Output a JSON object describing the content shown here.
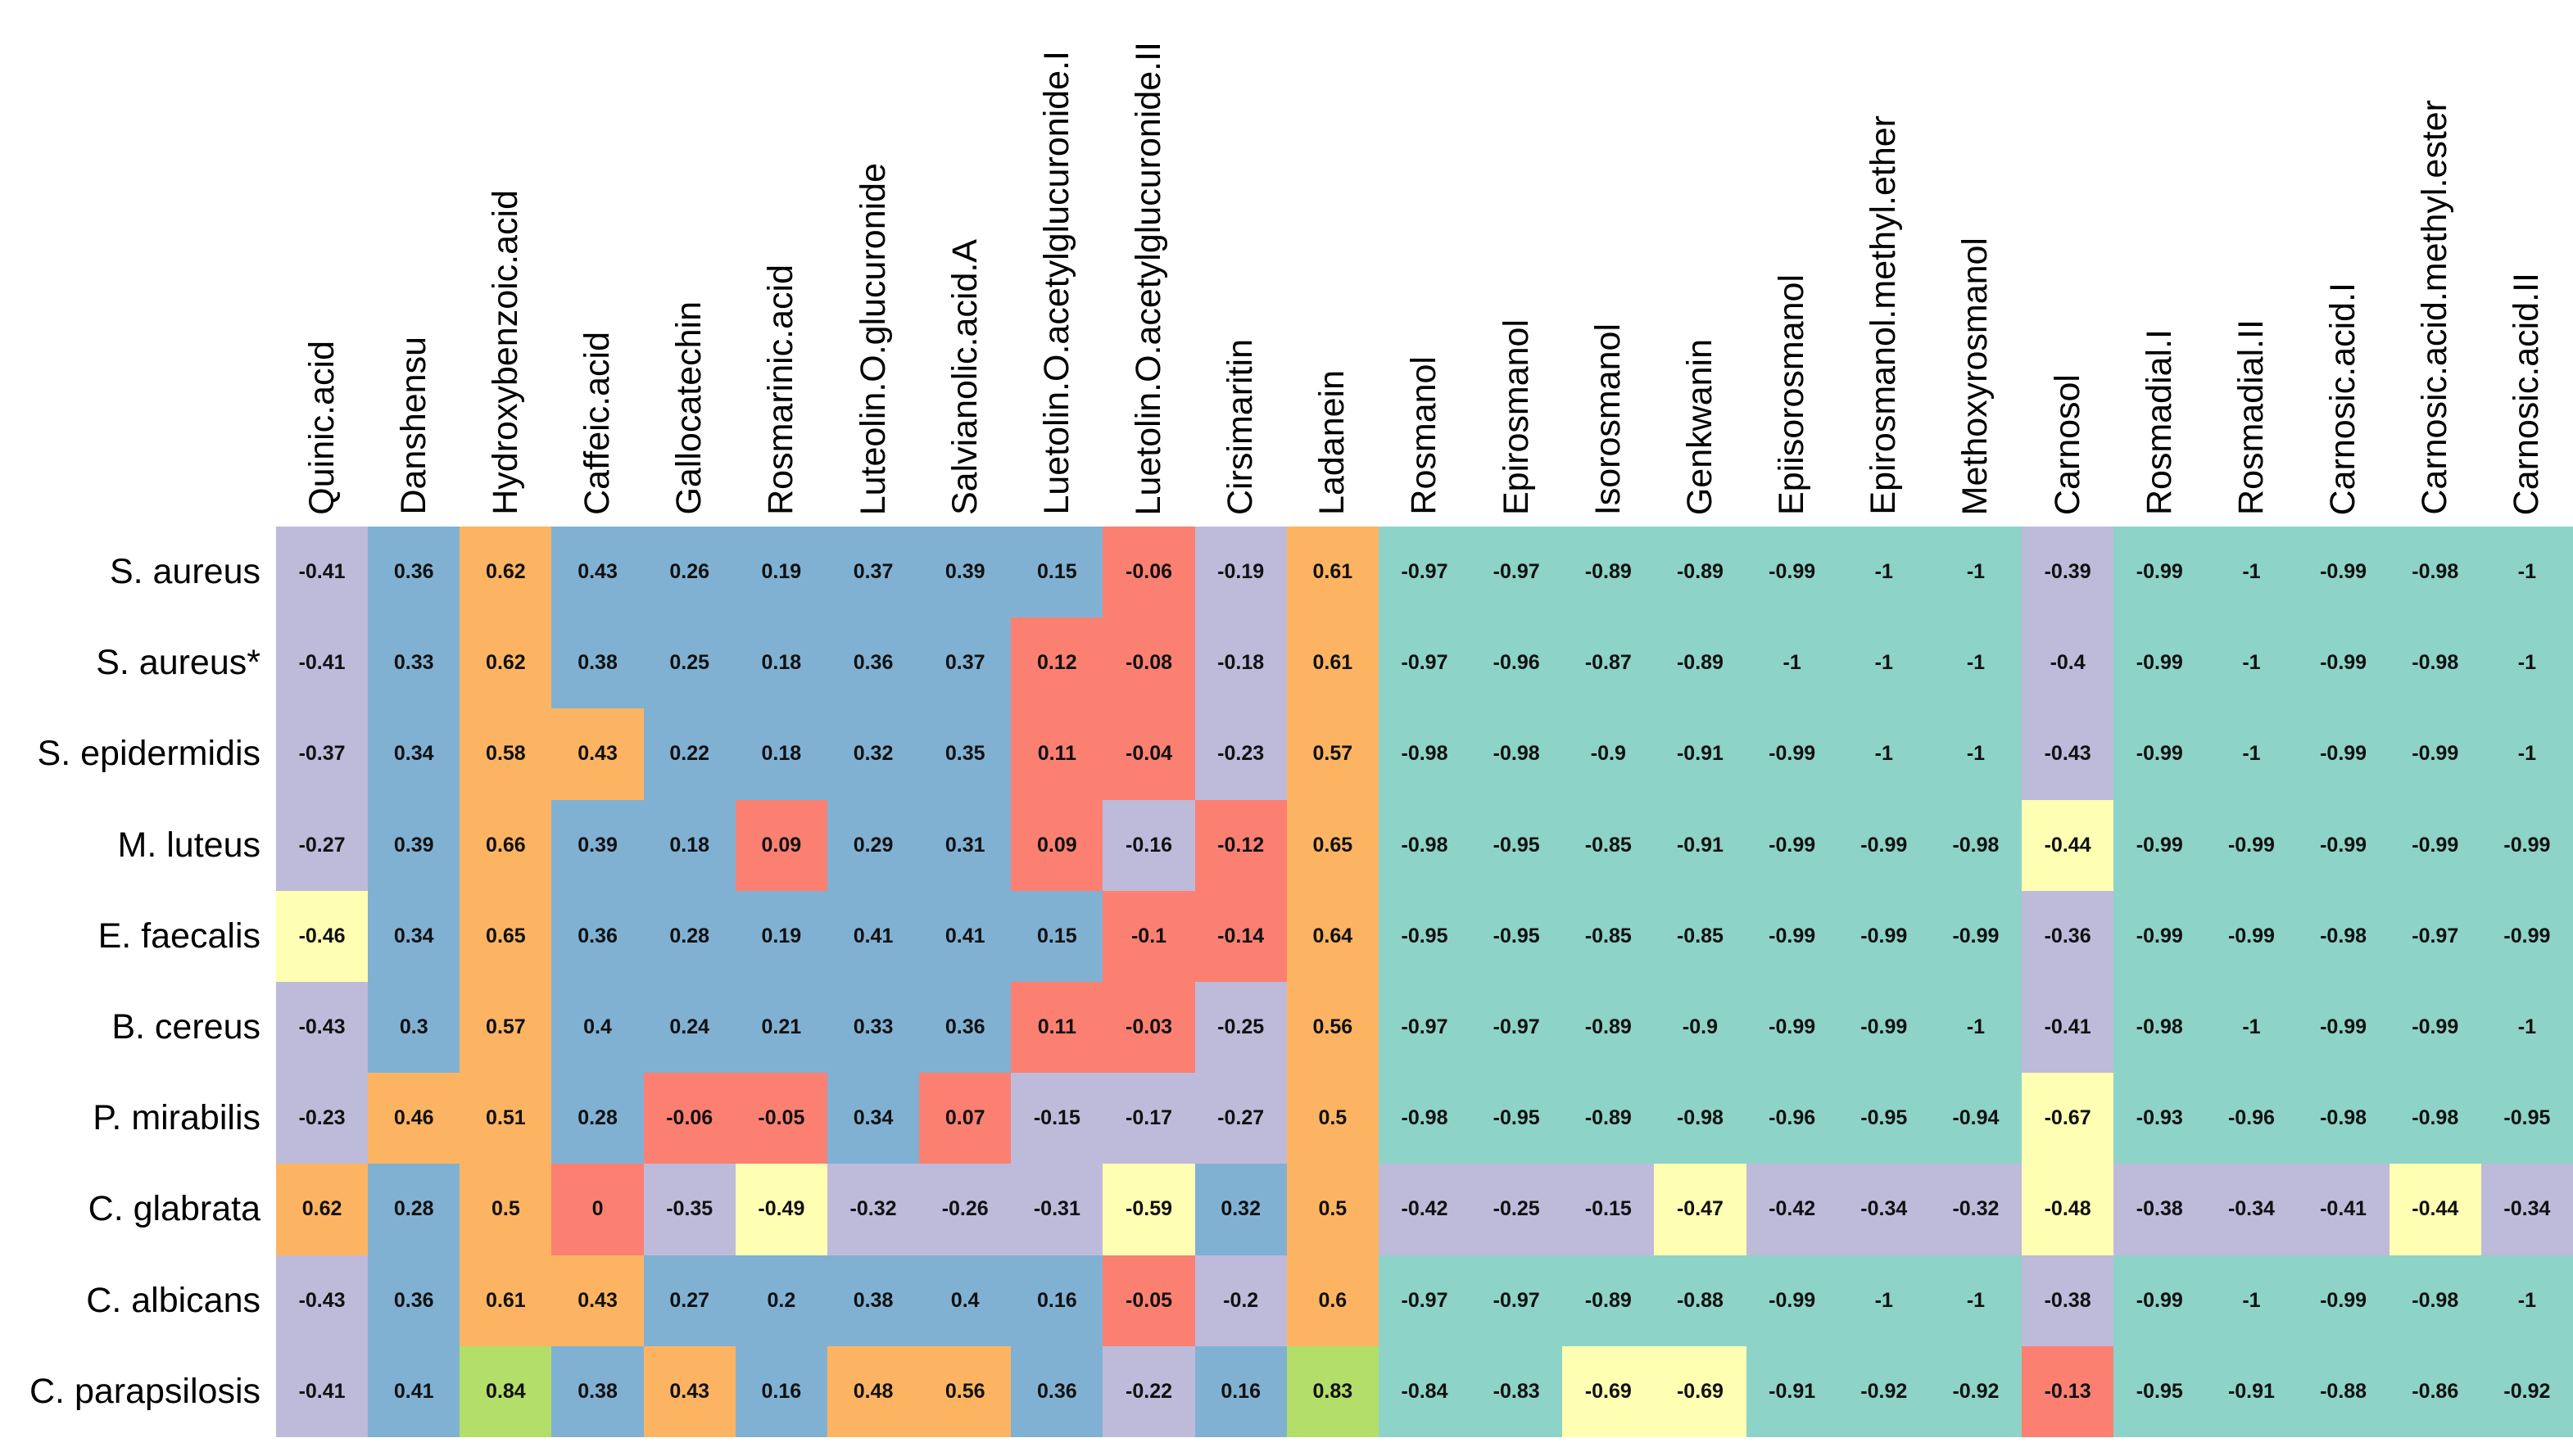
{
  "chart_data": {
    "type": "heatmap",
    "title": "",
    "xlabel": "",
    "ylabel": "",
    "legend": "none",
    "grid": false,
    "columns": [
      "Quinic.acid",
      "Danshensu",
      "Hydroxybenzoic.acid",
      "Caffeic.acid",
      "Gallocatechin",
      "Rosmarinic.acid",
      "Luteolin.O.glucuronide",
      "Salvianolic.acid.A",
      "Luetolin.O.acetylglucuronide.I",
      "Luetolin.O.acetylglucuronide.II",
      "Cirsimaritin",
      "Ladanein",
      "Rosmanol",
      "Epirosmanol",
      "Isorosmanol",
      "Genkwanin",
      "Epiisorosmanol",
      "Epirosmanol.methyl.ether",
      "Methoxyrosmanol",
      "Carnosol",
      "Rosmadial.I",
      "Rosmadial.II",
      "Carnosic.acid.I",
      "Carnosic.acid.methyl.ester",
      "Carnosic.acid.II"
    ],
    "rows": [
      "S. aureus",
      "S. aureus*",
      "S. epidermidis",
      "M. luteus",
      "E. faecalis",
      "B. cereus",
      "P. mirabilis",
      "C. glabrata",
      "C. albicans",
      "C. parapsilosis"
    ],
    "values": [
      [
        "-0.41",
        "0.36",
        "0.62",
        "0.43",
        "0.26",
        "0.19",
        "0.37",
        "0.39",
        "0.15",
        "-0.06",
        "-0.19",
        "0.61",
        "-0.97",
        "-0.97",
        "-0.89",
        "-0.89",
        "-0.99",
        "-1",
        "-1",
        "-0.39",
        "-0.99",
        "-1",
        "-0.99",
        "-0.98",
        "-1"
      ],
      [
        "-0.41",
        "0.33",
        "0.62",
        "0.38",
        "0.25",
        "0.18",
        "0.36",
        "0.37",
        "0.12",
        "-0.08",
        "-0.18",
        "0.61",
        "-0.97",
        "-0.96",
        "-0.87",
        "-0.89",
        "-1",
        "-1",
        "-1",
        "-0.4",
        "-0.99",
        "-1",
        "-0.99",
        "-0.98",
        "-1"
      ],
      [
        "-0.37",
        "0.34",
        "0.58",
        "0.43",
        "0.22",
        "0.18",
        "0.32",
        "0.35",
        "0.11",
        "-0.04",
        "-0.23",
        "0.57",
        "-0.98",
        "-0.98",
        "-0.9",
        "-0.91",
        "-0.99",
        "-1",
        "-1",
        "-0.43",
        "-0.99",
        "-1",
        "-0.99",
        "-0.99",
        "-1"
      ],
      [
        "-0.27",
        "0.39",
        "0.66",
        "0.39",
        "0.18",
        "0.09",
        "0.29",
        "0.31",
        "0.09",
        "-0.16",
        "-0.12",
        "0.65",
        "-0.98",
        "-0.95",
        "-0.85",
        "-0.91",
        "-0.99",
        "-0.99",
        "-0.98",
        "-0.44",
        "-0.99",
        "-0.99",
        "-0.99",
        "-0.99",
        "-0.99"
      ],
      [
        "-0.46",
        "0.34",
        "0.65",
        "0.36",
        "0.28",
        "0.19",
        "0.41",
        "0.41",
        "0.15",
        "-0.1",
        "-0.14",
        "0.64",
        "-0.95",
        "-0.95",
        "-0.85",
        "-0.85",
        "-0.99",
        "-0.99",
        "-0.99",
        "-0.36",
        "-0.99",
        "-0.99",
        "-0.98",
        "-0.97",
        "-0.99"
      ],
      [
        "-0.43",
        "0.3",
        "0.57",
        "0.4",
        "0.24",
        "0.21",
        "0.33",
        "0.36",
        "0.11",
        "-0.03",
        "-0.25",
        "0.56",
        "-0.97",
        "-0.97",
        "-0.89",
        "-0.9",
        "-0.99",
        "-0.99",
        "-1",
        "-0.41",
        "-0.98",
        "-1",
        "-0.99",
        "-0.99",
        "-1"
      ],
      [
        "-0.23",
        "0.46",
        "0.51",
        "0.28",
        "-0.06",
        "-0.05",
        "0.34",
        "0.07",
        "-0.15",
        "-0.17",
        "-0.27",
        "0.5",
        "-0.98",
        "-0.95",
        "-0.89",
        "-0.98",
        "-0.96",
        "-0.95",
        "-0.94",
        "-0.67",
        "-0.93",
        "-0.96",
        "-0.98",
        "-0.98",
        "-0.95"
      ],
      [
        "0.62",
        "0.28",
        "0.5",
        "0",
        "-0.35",
        "-0.49",
        "-0.32",
        "-0.26",
        "-0.31",
        "-0.59",
        "0.32",
        "0.5",
        "-0.42",
        "-0.25",
        "-0.15",
        "-0.47",
        "-0.42",
        "-0.34",
        "-0.32",
        "-0.48",
        "-0.38",
        "-0.34",
        "-0.41",
        "-0.44",
        "-0.34"
      ],
      [
        "-0.43",
        "0.36",
        "0.61",
        "0.43",
        "0.27",
        "0.2",
        "0.38",
        "0.4",
        "0.16",
        "-0.05",
        "-0.2",
        "0.6",
        "-0.97",
        "-0.97",
        "-0.89",
        "-0.88",
        "-0.99",
        "-1",
        "-1",
        "-0.38",
        "-0.99",
        "-1",
        "-0.99",
        "-0.98",
        "-1"
      ],
      [
        "-0.41",
        "0.41",
        "0.84",
        "0.38",
        "0.43",
        "0.16",
        "0.48",
        "0.56",
        "0.36",
        "-0.22",
        "0.16",
        "0.83",
        "-0.84",
        "-0.83",
        "-0.69",
        "-0.69",
        "-0.91",
        "-0.92",
        "-0.92",
        "-0.13",
        "-0.95",
        "-0.91",
        "-0.88",
        "-0.86",
        "-0.92"
      ]
    ],
    "cell_colors": [
      [
        "P",
        "B",
        "O",
        "B",
        "B",
        "B",
        "B",
        "B",
        "B",
        "R",
        "P",
        "O",
        "T",
        "T",
        "T",
        "T",
        "T",
        "T",
        "T",
        "P",
        "T",
        "T",
        "T",
        "T",
        "T"
      ],
      [
        "P",
        "B",
        "O",
        "B",
        "B",
        "B",
        "B",
        "B",
        "R",
        "R",
        "P",
        "O",
        "T",
        "T",
        "T",
        "T",
        "T",
        "T",
        "T",
        "P",
        "T",
        "T",
        "T",
        "T",
        "T"
      ],
      [
        "P",
        "B",
        "O",
        "O",
        "B",
        "B",
        "B",
        "B",
        "R",
        "R",
        "P",
        "O",
        "T",
        "T",
        "T",
        "T",
        "T",
        "T",
        "T",
        "P",
        "T",
        "T",
        "T",
        "T",
        "T"
      ],
      [
        "P",
        "B",
        "O",
        "B",
        "B",
        "R",
        "B",
        "B",
        "R",
        "P",
        "R",
        "O",
        "T",
        "T",
        "T",
        "T",
        "T",
        "T",
        "T",
        "Y",
        "T",
        "T",
        "T",
        "T",
        "T"
      ],
      [
        "Y",
        "B",
        "O",
        "B",
        "B",
        "B",
        "B",
        "B",
        "B",
        "R",
        "R",
        "O",
        "T",
        "T",
        "T",
        "T",
        "T",
        "T",
        "T",
        "P",
        "T",
        "T",
        "T",
        "T",
        "T"
      ],
      [
        "P",
        "B",
        "O",
        "B",
        "B",
        "B",
        "B",
        "B",
        "R",
        "R",
        "P",
        "O",
        "T",
        "T",
        "T",
        "T",
        "T",
        "T",
        "T",
        "P",
        "T",
        "T",
        "T",
        "T",
        "T"
      ],
      [
        "P",
        "O",
        "O",
        "B",
        "R",
        "R",
        "B",
        "R",
        "P",
        "P",
        "P",
        "O",
        "T",
        "T",
        "T",
        "T",
        "T",
        "T",
        "T",
        "Y",
        "T",
        "T",
        "T",
        "T",
        "T"
      ],
      [
        "O",
        "B",
        "O",
        "R",
        "P",
        "Y",
        "P",
        "P",
        "P",
        "Y",
        "B",
        "O",
        "P",
        "P",
        "P",
        "Y",
        "P",
        "P",
        "P",
        "Y",
        "P",
        "P",
        "P",
        "Y",
        "P"
      ],
      [
        "P",
        "B",
        "O",
        "O",
        "B",
        "B",
        "B",
        "B",
        "B",
        "R",
        "P",
        "O",
        "T",
        "T",
        "T",
        "T",
        "T",
        "T",
        "T",
        "P",
        "T",
        "T",
        "T",
        "T",
        "T"
      ],
      [
        "P",
        "B",
        "G",
        "B",
        "O",
        "B",
        "O",
        "O",
        "B",
        "P",
        "B",
        "G",
        "T",
        "T",
        "Y",
        "Y",
        "T",
        "T",
        "T",
        "R",
        "T",
        "T",
        "T",
        "T",
        "T"
      ]
    ],
    "palette": {
      "T": "#8DD3C7",
      "Y": "#FFFFB3",
      "P": "#BEBADA",
      "R": "#FB8072",
      "B": "#80B1D3",
      "O": "#FDB462",
      "G": "#B3DE69"
    }
  }
}
